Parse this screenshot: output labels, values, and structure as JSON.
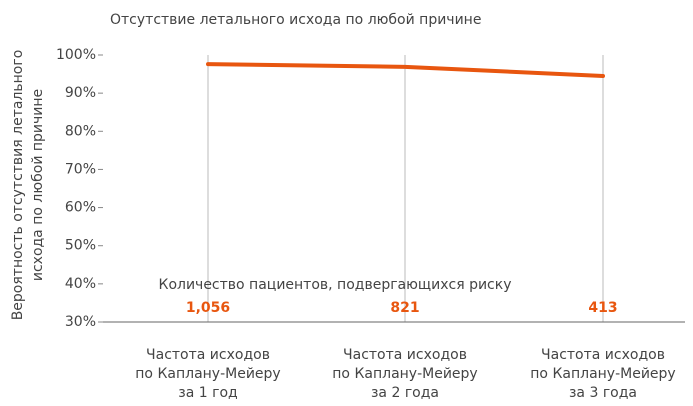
{
  "chart_data": {
    "type": "line",
    "title": "Отсутствие летального исхода по любой причине",
    "ylabel": [
      "Вероятность отсутствия летального",
      "исхода по любой причине"
    ],
    "categories": [
      [
        "Частота исходов",
        "по Каплану-Мейеру",
        "за 1 год"
      ],
      [
        "Частота исходов",
        "по Каплану-Мейеру",
        "за 2 года"
      ],
      [
        "Частота исходов",
        "по Каплану-Мейеру",
        "за 3 года"
      ]
    ],
    "series": [
      {
        "name": null,
        "color": "#e8560f",
        "values": [
          97.6,
          96.9,
          94.5
        ]
      }
    ],
    "ylim": [
      30,
      100
    ],
    "yticks": [
      {
        "value": 30,
        "label": "30%"
      },
      {
        "value": 40,
        "label": "40%"
      },
      {
        "value": 50,
        "label": "50%"
      },
      {
        "value": 60,
        "label": "60%"
      },
      {
        "value": 70,
        "label": "70%"
      },
      {
        "value": 80,
        "label": "80%"
      },
      {
        "value": 90,
        "label": "90%"
      },
      {
        "value": 100,
        "label": "100%"
      }
    ],
    "at_risk": {
      "title": "Количество пациентов, подвергающихся риску",
      "values": [
        1056,
        821,
        413
      ],
      "labels": [
        "1,056",
        "821",
        "413"
      ],
      "color": "#e8560f"
    },
    "grid": "x"
  }
}
